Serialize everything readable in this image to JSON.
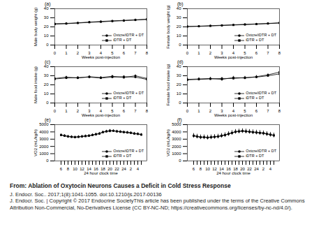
{
  "chart_data": [
    {
      "type": "line",
      "title": "(a)",
      "x_label": "Weeks post-injection",
      "y_label": "Male body weight (g)",
      "x": [
        0,
        1,
        2,
        3,
        4,
        5,
        6,
        7,
        8
      ],
      "xlim": [
        0,
        8
      ],
      "xticks": [
        0,
        1,
        2,
        3,
        4,
        5,
        6,
        7,
        8
      ],
      "ylim": [
        0,
        40
      ],
      "yticks": [
        0,
        10,
        20,
        30,
        40
      ],
      "grid": false,
      "legend": "lower right",
      "series": [
        {
          "name": "Oxtcre/iDTR + DT",
          "color": "#000000",
          "marker": "circle",
          "values": [
            23.5,
            23.8,
            24.5,
            25.3,
            26.0,
            26.6,
            27.2,
            27.8,
            28.5
          ],
          "error": [
            0.8,
            0.8,
            0.8,
            0.8,
            0.8,
            0.8,
            0.8,
            0.8,
            0.8
          ]
        },
        {
          "name": "iDTR + DT",
          "color": "#000000",
          "marker": "square",
          "values": [
            23.0,
            23.5,
            24.2,
            25.0,
            25.5,
            26.3,
            26.8,
            27.5,
            28.2
          ],
          "error": [
            0.8,
            0.8,
            0.8,
            0.8,
            0.8,
            0.8,
            0.8,
            0.8,
            0.8
          ]
        }
      ]
    },
    {
      "type": "line",
      "title": "(b)",
      "x_label": "Weeks post-injection",
      "y_label": "Female body weight (g)",
      "x": [
        0,
        1,
        2,
        3,
        4,
        5,
        6,
        7,
        8
      ],
      "xlim": [
        0,
        8
      ],
      "xticks": [
        0,
        1,
        2,
        3,
        4,
        5,
        6,
        7,
        8
      ],
      "ylim": [
        0,
        40
      ],
      "yticks": [
        0,
        10,
        20,
        30,
        40
      ],
      "grid": false,
      "legend": "lower right",
      "series": [
        {
          "name": "Oxtcre/iDTR + DT",
          "color": "#000000",
          "marker": "circle",
          "values": [
            20.5,
            20.8,
            21.3,
            21.8,
            22.3,
            22.8,
            23.3,
            23.8,
            24.5
          ],
          "error": [
            0.6,
            0.6,
            0.6,
            0.6,
            0.6,
            0.6,
            0.6,
            0.6,
            0.6
          ]
        },
        {
          "name": "iDTR + DT",
          "color": "#000000",
          "marker": "square",
          "values": [
            20.3,
            20.6,
            21.0,
            21.5,
            22.0,
            22.5,
            23.0,
            23.6,
            24.2
          ],
          "error": [
            0.6,
            0.6,
            0.6,
            0.6,
            0.6,
            0.6,
            0.6,
            0.6,
            0.6
          ]
        }
      ]
    },
    {
      "type": "line",
      "title": "(c)",
      "x_label": "Weeks post-injection",
      "y_label": "Male food intake (g)",
      "x": [
        0,
        1,
        2,
        3,
        4,
        5,
        6,
        7,
        8
      ],
      "xlim": [
        0,
        8
      ],
      "xticks": [
        0,
        1,
        2,
        3,
        4,
        5,
        6,
        7,
        8
      ],
      "ylim": [
        0,
        40
      ],
      "yticks": [
        0,
        10,
        20,
        30,
        40
      ],
      "grid": false,
      "legend": "lower right",
      "series": [
        {
          "name": "Oxtcre/iDTR + DT",
          "color": "#000000",
          "marker": "circle",
          "values": [
            27,
            28.5,
            27.5,
            29,
            28,
            29.5,
            28,
            30,
            27
          ],
          "error": [
            1.2,
            1.2,
            1.2,
            1.2,
            1.2,
            1.2,
            1.2,
            1.2,
            1.2
          ]
        },
        {
          "name": "iDTR + DT",
          "color": "#000000",
          "marker": "square",
          "values": [
            26.5,
            27.5,
            28,
            28.5,
            27.5,
            28.5,
            29,
            28.5,
            26
          ],
          "error": [
            1.2,
            1.2,
            1.2,
            1.2,
            1.2,
            1.2,
            1.2,
            1.2,
            1.2
          ]
        }
      ]
    },
    {
      "type": "line",
      "title": "(d)",
      "x_label": "Weeks post-injection",
      "y_label": "Female food intake (g)",
      "x": [
        0,
        1,
        2,
        3,
        4,
        5,
        6,
        7,
        8
      ],
      "xlim": [
        0,
        8
      ],
      "xticks": [
        0,
        1,
        2,
        3,
        4,
        5,
        6,
        7,
        8
      ],
      "ylim": [
        0,
        40
      ],
      "yticks": [
        0,
        10,
        20,
        30,
        40
      ],
      "grid": false,
      "legend": "lower right",
      "series": [
        {
          "name": "Oxtcre/iDTR + DT",
          "color": "#000000",
          "marker": "circle",
          "values": [
            26,
            26.5,
            27,
            26,
            28,
            27.5,
            29,
            31,
            34
          ],
          "error": [
            1.5,
            1.5,
            1.5,
            1.5,
            1.5,
            1.5,
            1.5,
            1.5,
            1.5
          ]
        },
        {
          "name": "iDTR + DT",
          "color": "#000000",
          "marker": "square",
          "values": [
            25.5,
            26,
            26.5,
            27,
            27,
            28,
            28.5,
            30,
            32
          ],
          "error": [
            1.5,
            1.5,
            1.5,
            1.5,
            1.5,
            1.5,
            1.5,
            1.5,
            1.5
          ]
        }
      ]
    },
    {
      "type": "line",
      "title": "(e)",
      "x_label": "24 hour clock time",
      "y_label": "VO2 (mL/kg/h)",
      "categories": [
        "6",
        null,
        "8",
        null,
        "10",
        null,
        "12",
        null,
        "14",
        null,
        "16",
        null,
        "18",
        null,
        "20",
        null,
        "22",
        null,
        "24",
        null,
        "2",
        null,
        "4",
        null
      ],
      "ylim": [
        0,
        5000
      ],
      "yticks": [
        0,
        1000,
        2000,
        3000,
        4000,
        5000
      ],
      "grid": false,
      "legend": "lower right",
      "series": [
        {
          "name": "Oxtcre/iDTR + DT",
          "color": "#000000",
          "marker": "circle",
          "values": [
            3600,
            3500,
            3400,
            3350,
            3300,
            3350,
            3400,
            3450,
            3500,
            3600,
            3700,
            3800,
            4000,
            4100,
            4200,
            4150,
            4100,
            4050,
            4000,
            3950,
            3900,
            3800,
            3750,
            3650
          ],
          "error": [
            150,
            150,
            150,
            150,
            150,
            150,
            150,
            150,
            150,
            150,
            150,
            150,
            150,
            150,
            150,
            150,
            150,
            150,
            150,
            150,
            150,
            150,
            150,
            150
          ]
        },
        {
          "name": "iDTR + DT",
          "color": "#000000",
          "marker": "square",
          "values": [
            3550,
            3450,
            3350,
            3300,
            3250,
            3300,
            3350,
            3400,
            3450,
            3550,
            3650,
            3750,
            3950,
            4050,
            4100,
            4150,
            4050,
            4000,
            3950,
            3900,
            3850,
            3750,
            3700,
            3600
          ],
          "error": [
            150,
            150,
            150,
            150,
            150,
            150,
            150,
            150,
            150,
            150,
            150,
            150,
            150,
            150,
            150,
            150,
            150,
            150,
            150,
            150,
            150,
            150,
            150,
            150
          ]
        }
      ]
    },
    {
      "type": "line",
      "title": "(f)",
      "x_label": "24 hour clock time",
      "y_label": "VO2 (mL/kg/h)",
      "categories": [
        "6",
        null,
        "8",
        null,
        "10",
        null,
        "12",
        null,
        "14",
        null,
        "16",
        null,
        "18",
        null,
        "20",
        null,
        "22",
        null,
        "24",
        null,
        "2",
        null,
        "4",
        null
      ],
      "ylim": [
        0,
        5000
      ],
      "yticks": [
        0,
        1000,
        2000,
        3000,
        4000,
        5000
      ],
      "grid": false,
      "legend": "lower right",
      "series": [
        {
          "name": "Oxtcre/iDTR + DT",
          "color": "#000000",
          "marker": "circle",
          "values": [
            3500,
            3400,
            3300,
            3300,
            3250,
            3300,
            3350,
            3400,
            3500,
            3600,
            3750,
            3900,
            4050,
            4100,
            4150,
            4100,
            4050,
            4000,
            3950,
            3900,
            3850,
            3750,
            3650,
            3550
          ],
          "error": [
            300,
            300,
            300,
            300,
            300,
            300,
            300,
            300,
            300,
            300,
            300,
            300,
            300,
            300,
            300,
            300,
            300,
            300,
            300,
            300,
            300,
            300,
            300,
            300
          ]
        },
        {
          "name": "iDTR + DT",
          "color": "#000000",
          "marker": "square",
          "values": [
            3450,
            3350,
            3250,
            3250,
            3200,
            3250,
            3300,
            3350,
            3450,
            3550,
            3700,
            3850,
            4000,
            4050,
            4100,
            4050,
            4000,
            3950,
            3900,
            3850,
            3800,
            3700,
            3600,
            3500
          ],
          "error": [
            300,
            300,
            300,
            300,
            300,
            300,
            300,
            300,
            300,
            300,
            300,
            300,
            300,
            300,
            300,
            300,
            300,
            300,
            300,
            300,
            300,
            300,
            300,
            300
          ]
        }
      ]
    }
  ],
  "caption": [
    "From: Ablation of Oxytocin Neurons Causes a Deficit in Cold Stress Response",
    "J. Endocr. Soc.. 2017;1(8):1041-1055. doi:10.1210/js.2017-00136",
    "J. Endocr. Soc. | Copyright © 2017 Endocrine SocietyThis article has been published under the terms of the Creative Commons Attribution Non-Commercial, No-Derivatives License (CC BY-NC-ND; https://creativecommons.org/licenses/by-nc-nd/4.0/)."
  ]
}
